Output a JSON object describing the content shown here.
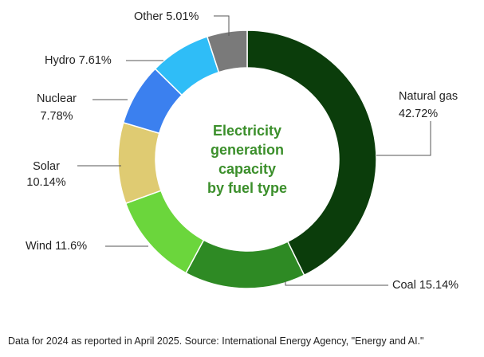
{
  "chart_data": {
    "type": "pie",
    "style": "donut",
    "center_title": [
      "Electricity",
      "generation",
      "capacity",
      "by fuel type"
    ],
    "slices": [
      {
        "name": "Natural gas",
        "value": 42.72,
        "label_lines": [
          "Natural gas",
          "42.72%"
        ],
        "color": "#0b3d0b"
      },
      {
        "name": "Coal",
        "value": 15.14,
        "label_lines": [
          "Coal 15.14%"
        ],
        "color": "#2e8a24"
      },
      {
        "name": "Wind",
        "value": 11.6,
        "label_lines": [
          "Wind 11.6%"
        ],
        "color": "#6bd63c"
      },
      {
        "name": "Solar",
        "value": 10.14,
        "label_lines": [
          "Solar",
          "10.14%"
        ],
        "color": "#dfcb72"
      },
      {
        "name": "Nuclear",
        "value": 7.78,
        "label_lines": [
          "Nuclear",
          "7.78%"
        ],
        "color": "#3b80ef"
      },
      {
        "name": "Hydro",
        "value": 7.61,
        "label_lines": [
          "Hydro 7.61%"
        ],
        "color": "#2fbdf7"
      },
      {
        "name": "Other",
        "value": 5.01,
        "label_lines": [
          "Other 5.01%"
        ],
        "color": "#7a7a7a"
      }
    ]
  },
  "colors": {
    "center_text": "#3b8f2b",
    "leader": "#555555"
  },
  "footer": {
    "source": "Data for 2024 as reported in April 2025. Source: International Energy Agency, \"Energy and AI.\""
  }
}
